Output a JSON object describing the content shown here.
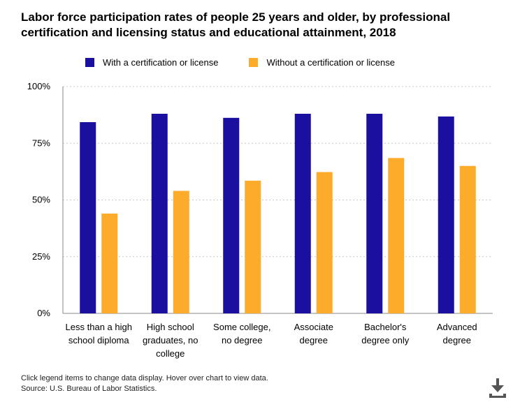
{
  "header": {
    "title": "Labor force participation rates of people 25 years and older, by professional certification and licensing status and educational attainment, 2018"
  },
  "colors": {
    "with_cert": "#1a0f9e",
    "without_cert": "#fcab2b",
    "grid": "#c8c8c8",
    "axis": "#888888"
  },
  "chart_data": {
    "type": "bar",
    "title": "Labor force participation rates of people 25 years and older, by professional certification and licensing status and educational attainment, 2018",
    "xlabel": "",
    "ylabel": "",
    "ylim": [
      0,
      100
    ],
    "yticks": [
      0,
      25,
      50,
      75,
      100
    ],
    "ytick_labels": [
      "0%",
      "25%",
      "50%",
      "75%",
      "100%"
    ],
    "legend_position": "top",
    "grid": true,
    "categories": [
      [
        "Less than a high",
        "school diploma"
      ],
      [
        "High school",
        "graduates, no",
        "college"
      ],
      [
        "Some college,",
        "no degree"
      ],
      [
        "Associate",
        "degree"
      ],
      [
        "Bachelor's",
        "degree only"
      ],
      [
        "Advanced",
        "degree"
      ]
    ],
    "series": [
      {
        "name": "With a certification or license",
        "values": [
          84.3,
          88.0,
          86.2,
          88.0,
          88.0,
          86.8
        ]
      },
      {
        "name": "Without a certification or license",
        "values": [
          44.0,
          54.0,
          58.5,
          62.3,
          68.5,
          65.0
        ]
      }
    ]
  },
  "footer": {
    "note": "Click legend items to change data display. Hover over chart to view data.",
    "source": "Source: U.S. Bureau of Labor Statistics."
  },
  "icons": {
    "download": "download-icon"
  }
}
